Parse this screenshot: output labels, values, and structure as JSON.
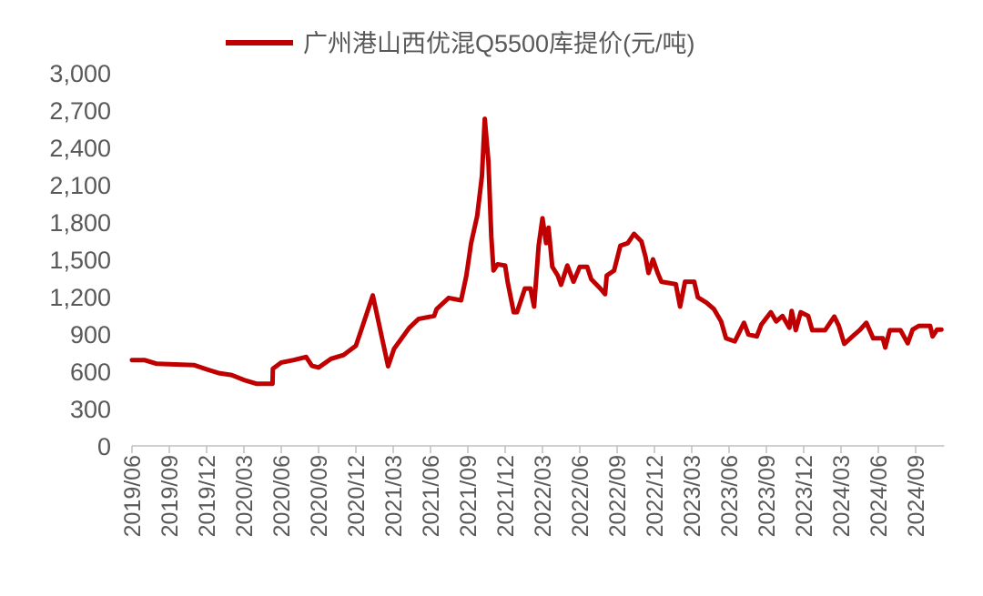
{
  "chart_data": {
    "type": "line",
    "title": "",
    "xlabel": "",
    "ylabel": "",
    "ylim": [
      0,
      3000
    ],
    "y_ticks": [
      "0",
      "300",
      "600",
      "900",
      "1,200",
      "1,500",
      "1,800",
      "2,100",
      "2,400",
      "2,700",
      "3,000"
    ],
    "y_tick_values": [
      0,
      300,
      600,
      900,
      1200,
      1500,
      1800,
      2100,
      2400,
      2700,
      3000
    ],
    "x_ticks": [
      "2019/06",
      "2019/09",
      "2019/12",
      "2020/03",
      "2020/06",
      "2020/09",
      "2020/12",
      "2021/03",
      "2021/06",
      "2021/09",
      "2021/12",
      "2022/03",
      "2022/06",
      "2022/09",
      "2022/12",
      "2023/03",
      "2023/06",
      "2023/09",
      "2023/12",
      "2024/03",
      "2024/06",
      "2024/09"
    ],
    "grid": false,
    "legend_position": "top",
    "series": [
      {
        "name": "广州港山西优混Q5500库提价(元/吨)",
        "color": "#C00000",
        "points": [
          [
            "2019-06-01",
            690
          ],
          [
            "2019-07-01",
            690
          ],
          [
            "2019-08-01",
            660
          ],
          [
            "2019-11-01",
            650
          ],
          [
            "2019-12-01",
            615
          ],
          [
            "2020-01-01",
            585
          ],
          [
            "2020-02-01",
            570
          ],
          [
            "2020-03-01",
            530
          ],
          [
            "2020-04-01",
            500
          ],
          [
            "2020-05-10",
            500
          ],
          [
            "2020-05-11",
            620
          ],
          [
            "2020-06-01",
            670
          ],
          [
            "2020-07-01",
            690
          ],
          [
            "2020-08-01",
            715
          ],
          [
            "2020-08-15",
            645
          ],
          [
            "2020-09-01",
            630
          ],
          [
            "2020-10-01",
            700
          ],
          [
            "2020-11-01",
            730
          ],
          [
            "2020-12-01",
            805
          ],
          [
            "2020-12-14",
            930
          ],
          [
            "2021-01-12",
            1210
          ],
          [
            "2021-02-19",
            640
          ],
          [
            "2021-03-03",
            780
          ],
          [
            "2021-04-10",
            950
          ],
          [
            "2021-05-02",
            1020
          ],
          [
            "2021-06-10",
            1045
          ],
          [
            "2021-06-16",
            1100
          ],
          [
            "2021-07-15",
            1190
          ],
          [
            "2021-08-15",
            1170
          ],
          [
            "2021-08-28",
            1370
          ],
          [
            "2021-09-09",
            1630
          ],
          [
            "2021-09-24",
            1850
          ],
          [
            "2021-10-05",
            2170
          ],
          [
            "2021-10-12",
            2630
          ],
          [
            "2021-10-21",
            2290
          ],
          [
            "2021-10-28",
            1680
          ],
          [
            "2021-11-03",
            1410
          ],
          [
            "2021-11-13",
            1460
          ],
          [
            "2021-12-01",
            1450
          ],
          [
            "2021-12-07",
            1320
          ],
          [
            "2021-12-22",
            1075
          ],
          [
            "2021-12-30",
            1075
          ],
          [
            "2022-01-19",
            1265
          ],
          [
            "2022-02-02",
            1265
          ],
          [
            "2022-02-11",
            1120
          ],
          [
            "2022-02-22",
            1610
          ],
          [
            "2022-03-01",
            1830
          ],
          [
            "2022-03-10",
            1630
          ],
          [
            "2022-03-16",
            1755
          ],
          [
            "2022-03-25",
            1440
          ],
          [
            "2022-04-08",
            1370
          ],
          [
            "2022-04-16",
            1295
          ],
          [
            "2022-05-01",
            1450
          ],
          [
            "2022-05-16",
            1320
          ],
          [
            "2022-06-01",
            1440
          ],
          [
            "2022-06-19",
            1440
          ],
          [
            "2022-06-29",
            1340
          ],
          [
            "2022-07-21",
            1265
          ],
          [
            "2022-08-02",
            1220
          ],
          [
            "2022-08-06",
            1370
          ],
          [
            "2022-08-24",
            1410
          ],
          [
            "2022-09-09",
            1610
          ],
          [
            "2022-09-27",
            1630
          ],
          [
            "2022-10-12",
            1705
          ],
          [
            "2022-10-30",
            1645
          ],
          [
            "2022-11-10",
            1515
          ],
          [
            "2022-11-17",
            1390
          ],
          [
            "2022-11-28",
            1500
          ],
          [
            "2022-12-09",
            1390
          ],
          [
            "2022-12-18",
            1320
          ],
          [
            "2023-01-23",
            1300
          ],
          [
            "2023-02-03",
            1120
          ],
          [
            "2023-02-15",
            1320
          ],
          [
            "2023-03-07",
            1320
          ],
          [
            "2023-03-16",
            1195
          ],
          [
            "2023-04-07",
            1150
          ],
          [
            "2023-04-25",
            1100
          ],
          [
            "2023-05-12",
            1000
          ],
          [
            "2023-05-24",
            865
          ],
          [
            "2023-06-15",
            840
          ],
          [
            "2023-07-07",
            990
          ],
          [
            "2023-07-18",
            895
          ],
          [
            "2023-08-08",
            880
          ],
          [
            "2023-08-19",
            975
          ],
          [
            "2023-09-12",
            1075
          ],
          [
            "2023-09-25",
            1000
          ],
          [
            "2023-10-10",
            1045
          ],
          [
            "2023-10-27",
            950
          ],
          [
            "2023-11-02",
            1085
          ],
          [
            "2023-11-12",
            930
          ],
          [
            "2023-11-24",
            1075
          ],
          [
            "2023-12-12",
            1045
          ],
          [
            "2023-12-22",
            930
          ],
          [
            "2024-01-23",
            930
          ],
          [
            "2024-02-15",
            1040
          ],
          [
            "2024-02-26",
            965
          ],
          [
            "2024-03-09",
            820
          ],
          [
            "2024-03-29",
            880
          ],
          [
            "2024-04-16",
            930
          ],
          [
            "2024-05-02",
            990
          ],
          [
            "2024-05-19",
            865
          ],
          [
            "2024-06-12",
            865
          ],
          [
            "2024-06-18",
            790
          ],
          [
            "2024-06-29",
            930
          ],
          [
            "2024-07-25",
            930
          ],
          [
            "2024-08-12",
            825
          ],
          [
            "2024-08-24",
            935
          ],
          [
            "2024-09-09",
            965
          ],
          [
            "2024-10-06",
            965
          ],
          [
            "2024-10-12",
            880
          ],
          [
            "2024-10-23",
            935
          ],
          [
            "2024-11-03",
            935
          ]
        ]
      }
    ]
  }
}
